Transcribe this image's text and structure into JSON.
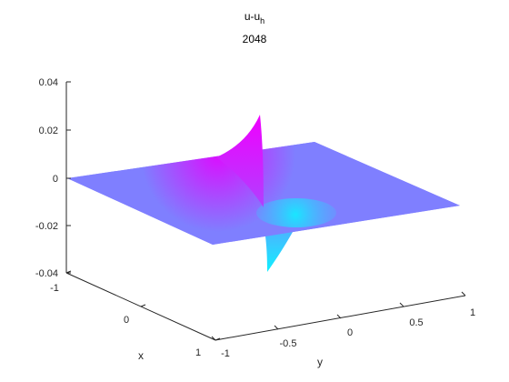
{
  "chart_data": {
    "type": "surface",
    "title": {
      "main": "u-u",
      "subscript": "h",
      "subtitle": "2048"
    },
    "xlabel": "x",
    "ylabel": "y",
    "zlabel": "",
    "xlim": [
      -1,
      1
    ],
    "ylim": [
      -1,
      1
    ],
    "zlim": [
      -0.04,
      0.04
    ],
    "x_ticks": [
      {
        "value": -1,
        "label": "-1"
      },
      {
        "value": 0,
        "label": "0"
      },
      {
        "value": 1,
        "label": "1"
      }
    ],
    "y_ticks": [
      {
        "value": -1,
        "label": "-1"
      },
      {
        "value": -0.5,
        "label": "-0.5"
      },
      {
        "value": 0,
        "label": "0"
      },
      {
        "value": 0.5,
        "label": "0.5"
      },
      {
        "value": 1,
        "label": "1"
      }
    ],
    "z_ticks": [
      {
        "value": 0.04,
        "label": "0.04"
      },
      {
        "value": 0.02,
        "label": "0.02"
      },
      {
        "value": 0,
        "label": "0"
      },
      {
        "value": -0.02,
        "label": "-0.02"
      },
      {
        "value": -0.04,
        "label": "-0.04"
      }
    ],
    "grid": false,
    "colormap": "cool",
    "colors": {
      "surface_base": "#7F7FFF",
      "peak": "#E600FF",
      "trough": "#19E6FF"
    },
    "features": {
      "positive_peak": {
        "x": 0,
        "y": -0.1,
        "z": 0.027
      },
      "negative_peak": {
        "x": 0,
        "y": -0.1,
        "z": -0.038
      }
    }
  }
}
